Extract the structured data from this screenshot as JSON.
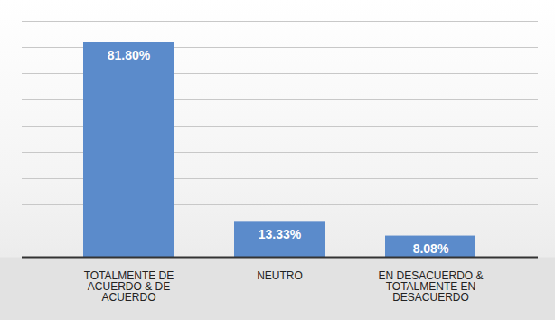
{
  "chart_data": {
    "type": "bar",
    "categories": [
      "TOTALMENTE DE ACUERDO & DE ACUERDO",
      "NEUTRO",
      "EN DESACUERDO & TOTALMENTE EN DESACUERDO"
    ],
    "values": [
      81.8,
      13.33,
      8.08
    ],
    "value_labels": [
      "81.80%",
      "13.33%",
      "8.08%"
    ],
    "color": "#5b8bcb",
    "ylim": [
      0,
      90
    ],
    "yticks": [
      0,
      10,
      20,
      30,
      40,
      50,
      60,
      70,
      80,
      90
    ],
    "grid": true,
    "data_labels": true,
    "tick_labels": "x"
  }
}
